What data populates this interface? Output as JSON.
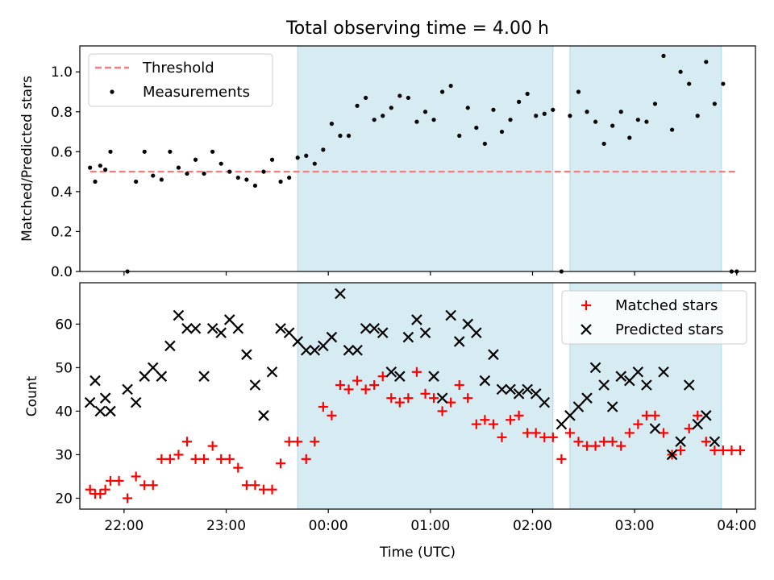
{
  "chart_data": [
    {
      "type": "scatter",
      "title": "Total observing time = 4.00 h",
      "xlabel": "",
      "ylabel": "Matched/Predicted stars",
      "xlim": [
        "21:34",
        "04:11"
      ],
      "ylim": [
        0,
        1.13
      ],
      "grid": false,
      "legend_position": "upper-left",
      "yticks": [
        "0.0",
        "0.2",
        "0.4",
        "0.6",
        "0.8",
        "1.0"
      ],
      "threshold": {
        "name": "Threshold",
        "value": 0.5,
        "x_range": [
          "21:40",
          "04:00"
        ],
        "color": "#f08080"
      },
      "shaded_intervals": [
        {
          "start": "23:42",
          "end": "02:12"
        },
        {
          "start": "02:22",
          "end": "03:51"
        }
      ],
      "series": [
        {
          "name": "Measurements",
          "color": "#000000",
          "points": [
            [
              "21:40",
              0.52
            ],
            [
              "21:43",
              0.45
            ],
            [
              "21:46",
              0.53
            ],
            [
              "21:49",
              0.51
            ],
            [
              "21:52",
              0.6
            ],
            [
              "22:02",
              0.0
            ],
            [
              "22:07",
              0.45
            ],
            [
              "22:12",
              0.6
            ],
            [
              "22:17",
              0.48
            ],
            [
              "22:22",
              0.46
            ],
            [
              "22:27",
              0.6
            ],
            [
              "22:32",
              0.52
            ],
            [
              "22:37",
              0.49
            ],
            [
              "22:42",
              0.56
            ],
            [
              "22:47",
              0.49
            ],
            [
              "22:52",
              0.6
            ],
            [
              "22:57",
              0.54
            ],
            [
              "23:02",
              0.5
            ],
            [
              "23:07",
              0.47
            ],
            [
              "23:12",
              0.46
            ],
            [
              "23:17",
              0.43
            ],
            [
              "23:22",
              0.5
            ],
            [
              "23:27",
              0.56
            ],
            [
              "23:32",
              0.45
            ],
            [
              "23:37",
              0.47
            ],
            [
              "23:42",
              0.57
            ],
            [
              "23:47",
              0.58
            ],
            [
              "23:52",
              0.54
            ],
            [
              "23:57",
              0.61
            ],
            [
              "00:02",
              0.74
            ],
            [
              "00:07",
              0.68
            ],
            [
              "00:12",
              0.68
            ],
            [
              "00:17",
              0.83
            ],
            [
              "00:22",
              0.87
            ],
            [
              "00:27",
              0.76
            ],
            [
              "00:32",
              0.78
            ],
            [
              "00:37",
              0.82
            ],
            [
              "00:42",
              0.88
            ],
            [
              "00:47",
              0.87
            ],
            [
              "00:52",
              0.75
            ],
            [
              "00:57",
              0.8
            ],
            [
              "01:02",
              0.76
            ],
            [
              "01:07",
              0.9
            ],
            [
              "01:12",
              0.93
            ],
            [
              "01:17",
              0.68
            ],
            [
              "01:22",
              0.82
            ],
            [
              "01:27",
              0.72
            ],
            [
              "01:32",
              0.64
            ],
            [
              "01:37",
              0.81
            ],
            [
              "01:42",
              0.7
            ],
            [
              "01:47",
              0.76
            ],
            [
              "01:52",
              0.85
            ],
            [
              "01:57",
              0.89
            ],
            [
              "02:02",
              0.78
            ],
            [
              "02:07",
              0.79
            ],
            [
              "02:12",
              0.81
            ],
            [
              "02:17",
              0.0
            ],
            [
              "02:22",
              0.78
            ],
            [
              "02:27",
              0.9
            ],
            [
              "02:32",
              0.8
            ],
            [
              "02:37",
              0.75
            ],
            [
              "02:42",
              0.64
            ],
            [
              "02:47",
              0.73
            ],
            [
              "02:52",
              0.8
            ],
            [
              "02:57",
              0.67
            ],
            [
              "03:02",
              0.76
            ],
            [
              "03:07",
              0.75
            ],
            [
              "03:12",
              0.84
            ],
            [
              "03:17",
              1.08
            ],
            [
              "03:22",
              0.71
            ],
            [
              "03:27",
              1.0
            ],
            [
              "03:32",
              0.94
            ],
            [
              "03:37",
              0.78
            ],
            [
              "03:42",
              1.05
            ],
            [
              "03:47",
              0.84
            ],
            [
              "03:52",
              0.94
            ],
            [
              "03:57",
              0.0
            ],
            [
              "04:00",
              0.0
            ]
          ]
        }
      ]
    },
    {
      "type": "scatter",
      "title": "",
      "xlabel": "Time (UTC)",
      "ylabel": "Count",
      "xlim": [
        "21:34",
        "04:11"
      ],
      "ylim": [
        17.5,
        69.5
      ],
      "grid": false,
      "legend_position": "upper-right",
      "xticks": [
        "22:00",
        "23:00",
        "00:00",
        "01:00",
        "02:00",
        "03:00",
        "04:00"
      ],
      "yticks": [
        "20",
        "30",
        "40",
        "50",
        "60"
      ],
      "shaded_intervals": [
        {
          "start": "23:42",
          "end": "02:12"
        },
        {
          "start": "02:22",
          "end": "03:51"
        }
      ],
      "series": [
        {
          "name": "Matched stars",
          "marker": "plus",
          "color": "#ff0000",
          "points": [
            [
              "21:40",
              22
            ],
            [
              "21:43",
              21
            ],
            [
              "21:46",
              21
            ],
            [
              "21:49",
              22
            ],
            [
              "21:52",
              24
            ],
            [
              "21:57",
              24
            ],
            [
              "22:02",
              20
            ],
            [
              "22:07",
              25
            ],
            [
              "22:12",
              23
            ],
            [
              "22:17",
              23
            ],
            [
              "22:22",
              29
            ],
            [
              "22:27",
              29
            ],
            [
              "22:32",
              30
            ],
            [
              "22:37",
              33
            ],
            [
              "22:42",
              29
            ],
            [
              "22:47",
              29
            ],
            [
              "22:52",
              32
            ],
            [
              "22:57",
              29
            ],
            [
              "23:02",
              29
            ],
            [
              "23:07",
              27
            ],
            [
              "23:12",
              23
            ],
            [
              "23:17",
              23
            ],
            [
              "23:22",
              22
            ],
            [
              "23:27",
              22
            ],
            [
              "23:32",
              28
            ],
            [
              "23:37",
              33
            ],
            [
              "23:42",
              33
            ],
            [
              "23:47",
              29
            ],
            [
              "23:52",
              33
            ],
            [
              "23:57",
              41
            ],
            [
              "00:02",
              39
            ],
            [
              "00:07",
              46
            ],
            [
              "00:12",
              45
            ],
            [
              "00:17",
              47
            ],
            [
              "00:22",
              45
            ],
            [
              "00:27",
              46
            ],
            [
              "00:32",
              48
            ],
            [
              "00:37",
              43
            ],
            [
              "00:42",
              42
            ],
            [
              "00:47",
              43
            ],
            [
              "00:52",
              49
            ],
            [
              "00:57",
              44
            ],
            [
              "01:02",
              43
            ],
            [
              "01:07",
              40
            ],
            [
              "01:12",
              42
            ],
            [
              "01:17",
              46
            ],
            [
              "01:22",
              43
            ],
            [
              "01:27",
              37
            ],
            [
              "01:32",
              38
            ],
            [
              "01:37",
              37
            ],
            [
              "01:42",
              34
            ],
            [
              "01:47",
              38
            ],
            [
              "01:52",
              39
            ],
            [
              "01:57",
              35
            ],
            [
              "02:02",
              35
            ],
            [
              "02:07",
              34
            ],
            [
              "02:12",
              34
            ],
            [
              "02:17",
              29
            ],
            [
              "02:22",
              35
            ],
            [
              "02:27",
              33
            ],
            [
              "02:32",
              32
            ],
            [
              "02:37",
              32
            ],
            [
              "02:42",
              33
            ],
            [
              "02:47",
              33
            ],
            [
              "02:52",
              32
            ],
            [
              "02:57",
              35
            ],
            [
              "03:02",
              37
            ],
            [
              "03:07",
              39
            ],
            [
              "03:12",
              39
            ],
            [
              "03:17",
              35
            ],
            [
              "03:22",
              30
            ],
            [
              "03:27",
              31
            ],
            [
              "03:32",
              36
            ],
            [
              "03:37",
              39
            ],
            [
              "03:42",
              33
            ],
            [
              "03:47",
              31
            ],
            [
              "03:52",
              31
            ],
            [
              "03:57",
              31
            ],
            [
              "04:02",
              31
            ]
          ]
        },
        {
          "name": "Predicted stars",
          "marker": "x",
          "color": "#000000",
          "points": [
            [
              "21:40",
              42
            ],
            [
              "21:43",
              47
            ],
            [
              "21:46",
              40
            ],
            [
              "21:49",
              43
            ],
            [
              "21:52",
              40
            ],
            [
              "22:02",
              45
            ],
            [
              "22:07",
              42
            ],
            [
              "22:12",
              48
            ],
            [
              "22:17",
              50
            ],
            [
              "22:22",
              48
            ],
            [
              "22:27",
              55
            ],
            [
              "22:32",
              62
            ],
            [
              "22:37",
              59
            ],
            [
              "22:42",
              59
            ],
            [
              "22:47",
              48
            ],
            [
              "22:52",
              59
            ],
            [
              "22:57",
              58
            ],
            [
              "23:02",
              61
            ],
            [
              "23:07",
              59
            ],
            [
              "23:12",
              53
            ],
            [
              "23:17",
              46
            ],
            [
              "23:22",
              39
            ],
            [
              "23:27",
              49
            ],
            [
              "23:32",
              59
            ],
            [
              "23:37",
              58
            ],
            [
              "23:42",
              56
            ],
            [
              "23:47",
              54
            ],
            [
              "23:52",
              54
            ],
            [
              "23:57",
              55
            ],
            [
              "00:02",
              57
            ],
            [
              "00:07",
              67
            ],
            [
              "00:12",
              54
            ],
            [
              "00:17",
              54
            ],
            [
              "00:22",
              59
            ],
            [
              "00:27",
              59
            ],
            [
              "00:32",
              58
            ],
            [
              "00:37",
              49
            ],
            [
              "00:42",
              48
            ],
            [
              "00:47",
              57
            ],
            [
              "00:52",
              61
            ],
            [
              "00:57",
              58
            ],
            [
              "01:02",
              48
            ],
            [
              "01:07",
              43
            ],
            [
              "01:12",
              62
            ],
            [
              "01:17",
              56
            ],
            [
              "01:22",
              60
            ],
            [
              "01:27",
              58
            ],
            [
              "01:32",
              47
            ],
            [
              "01:37",
              53
            ],
            [
              "01:42",
              45
            ],
            [
              "01:47",
              45
            ],
            [
              "01:52",
              44
            ],
            [
              "01:57",
              45
            ],
            [
              "02:02",
              44
            ],
            [
              "02:07",
              42
            ],
            [
              "02:17",
              37
            ],
            [
              "02:22",
              39
            ],
            [
              "02:27",
              41
            ],
            [
              "02:32",
              43
            ],
            [
              "02:37",
              50
            ],
            [
              "02:42",
              46
            ],
            [
              "02:47",
              41
            ],
            [
              "02:52",
              48
            ],
            [
              "02:57",
              47
            ],
            [
              "03:02",
              49
            ],
            [
              "03:07",
              46
            ],
            [
              "03:12",
              36
            ],
            [
              "03:17",
              49
            ],
            [
              "03:22",
              30
            ],
            [
              "03:27",
              33
            ],
            [
              "03:32",
              46
            ],
            [
              "03:37",
              37
            ],
            [
              "03:42",
              39
            ],
            [
              "03:47",
              33
            ]
          ]
        }
      ]
    }
  ]
}
